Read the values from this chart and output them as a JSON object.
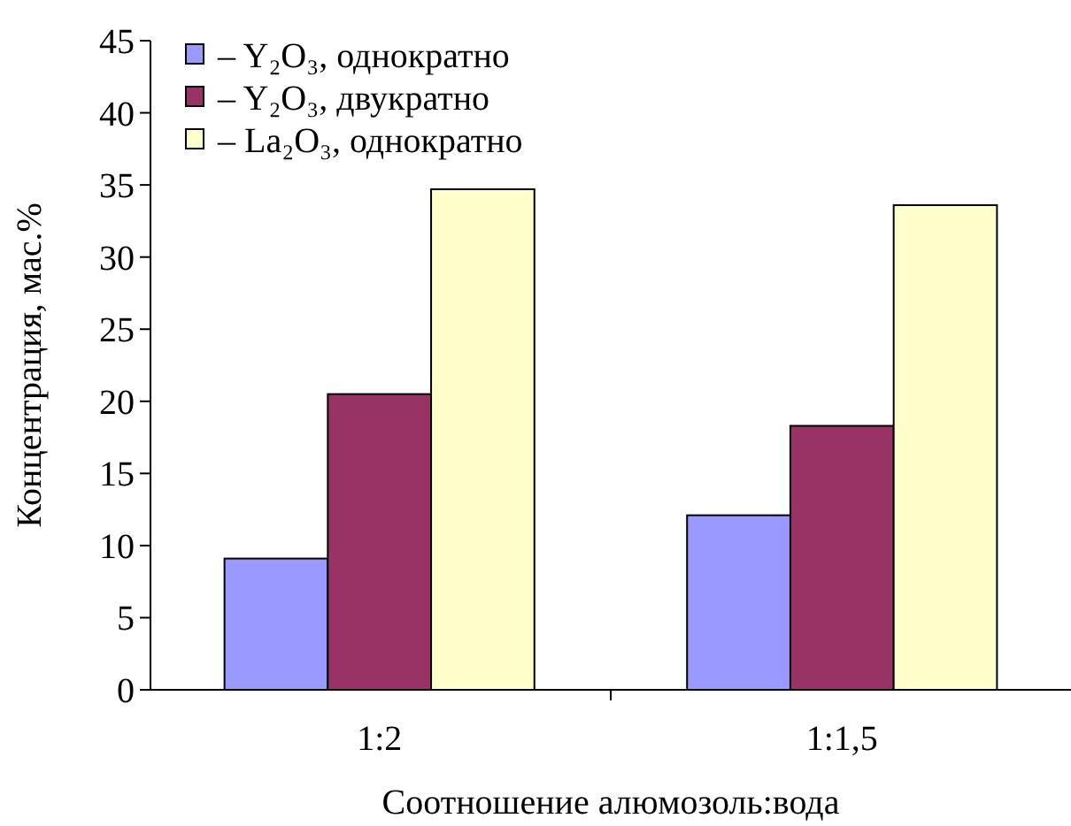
{
  "chart_data": {
    "type": "bar",
    "xlabel": "Соотношение алюмозоль:вода",
    "ylabel": "Концентрация, мас.%",
    "categories": [
      "1:2",
      "1:1,5"
    ],
    "series": [
      {
        "name": "– Y₂O₃, однократно",
        "color": "#9999ff",
        "values": [
          9.1,
          12.1
        ]
      },
      {
        "name": "– Y₂O₃, двукратно",
        "color": "#993366",
        "values": [
          20.5,
          18.3
        ]
      },
      {
        "name": "– La₂O₃, однократно",
        "color": "#ffffcc",
        "values": [
          34.7,
          33.6
        ]
      }
    ],
    "ylim": [
      0,
      45
    ],
    "yticks": [
      0,
      5,
      10,
      15,
      20,
      25,
      30,
      35,
      40,
      45
    ],
    "grid": false,
    "legend": "top left"
  }
}
